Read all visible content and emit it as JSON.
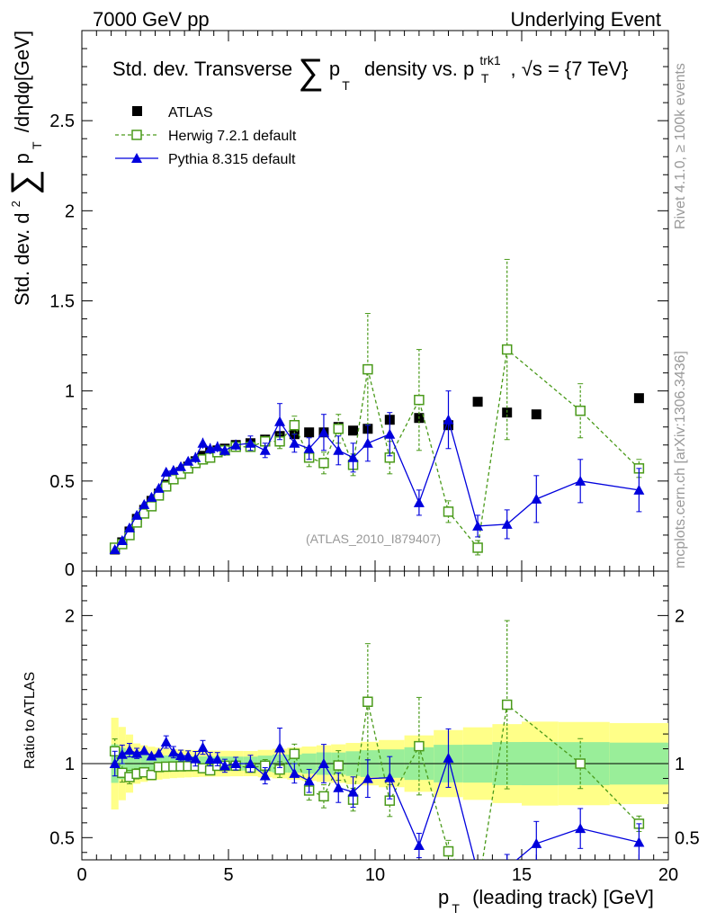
{
  "header": {
    "left": "7000 GeV pp",
    "right": "Underlying Event"
  },
  "side_labels": {
    "rivet": "Rivet 4.1.0, ≥ 100k events",
    "mcplots": "mcplots.cern.ch [arXiv:1306.3436]"
  },
  "chart_data": {
    "type": "scatter",
    "title_parts": {
      "pre": "Std. dev. Transverse",
      "sum": "∑",
      "p": "p",
      "T": "T",
      "mid": "density vs. p",
      "sup": "trk1",
      "sub": "T",
      "post": ", √s = {7 TeV}"
    },
    "ylabel_parts": {
      "pre": "Std. dev. d",
      "two": "2",
      "sum": "∑",
      "p": "p",
      "T": "T",
      "post": "/dηdφ[GeV]"
    },
    "xlabel_parts": {
      "p": "p",
      "T": "T",
      "post": "(leading track) [GeV]"
    },
    "ratio_ylabel": "Ratio to ATLAS",
    "watermark": "(ATLAS_2010_I879407)",
    "xlim": [
      0,
      20
    ],
    "ylim": [
      0,
      3.0
    ],
    "ratio_ylim": [
      0.35,
      2.3
    ],
    "x_ticks": [
      "0",
      "5",
      "10",
      "15",
      "20"
    ],
    "y_ticks": [
      "0.5",
      "1",
      "1.5",
      "2",
      "2.5"
    ],
    "y_zero_label": "0",
    "ratio_ticks": [
      "0.5",
      "1",
      "2"
    ],
    "legend": [
      {
        "name": "ATLAS",
        "marker": "square-filled",
        "color": "#000000"
      },
      {
        "name": "Herwig 7.2.1 default",
        "marker": "square-open",
        "color": "#4a9a1a"
      },
      {
        "name": "Pythia 8.315 default",
        "marker": "triangle",
        "color": "#0000dd"
      }
    ],
    "atlas": {
      "x": [
        1.125,
        1.375,
        1.625,
        1.875,
        2.125,
        2.375,
        2.625,
        2.875,
        3.125,
        3.375,
        3.625,
        3.875,
        4.125,
        4.375,
        4.625,
        4.875,
        5.25,
        5.75,
        6.25,
        6.75,
        7.25,
        7.75,
        8.25,
        8.75,
        9.25,
        9.75,
        10.5,
        11.5,
        12.5,
        13.5,
        14.5,
        15.5,
        17.0,
        19.0
      ],
      "y": [
        0.12,
        0.16,
        0.22,
        0.29,
        0.34,
        0.39,
        0.43,
        0.48,
        0.52,
        0.55,
        0.58,
        0.61,
        0.64,
        0.66,
        0.67,
        0.68,
        0.7,
        0.71,
        0.73,
        0.75,
        0.76,
        0.77,
        0.77,
        0.8,
        0.78,
        0.79,
        0.84,
        0.85,
        0.81,
        0.94,
        0.88,
        0.87,
        0.89,
        0.96
      ],
      "band_inner": [
        0.03,
        0.03,
        0.03,
        0.03,
        0.03,
        0.03,
        0.03,
        0.03,
        0.03,
        0.03,
        0.03,
        0.03,
        0.03,
        0.03,
        0.03,
        0.03,
        0.03,
        0.03,
        0.035,
        0.04,
        0.04,
        0.045,
        0.05,
        0.05,
        0.055,
        0.06,
        0.065,
        0.075,
        0.085,
        0.09,
        0.1,
        0.1,
        0.1,
        0.1
      ],
      "band_outer": [
        0.06,
        0.06,
        0.06,
        0.05,
        0.05,
        0.05,
        0.05,
        0.05,
        0.05,
        0.05,
        0.05,
        0.05,
        0.05,
        0.05,
        0.05,
        0.05,
        0.05,
        0.05,
        0.055,
        0.06,
        0.065,
        0.07,
        0.075,
        0.08,
        0.085,
        0.09,
        0.1,
        0.12,
        0.14,
        0.16,
        0.17,
        0.18,
        0.18,
        0.18
      ]
    },
    "herwig": {
      "x": [
        1.125,
        1.375,
        1.625,
        1.875,
        2.125,
        2.375,
        2.625,
        2.875,
        3.125,
        3.375,
        3.625,
        3.875,
        4.125,
        4.375,
        4.625,
        4.875,
        5.25,
        5.75,
        6.25,
        6.75,
        7.25,
        7.75,
        8.25,
        8.75,
        9.25,
        9.75,
        10.5,
        11.5,
        12.5,
        13.5,
        14.5,
        17.0,
        19.0
      ],
      "y": [
        0.13,
        0.15,
        0.2,
        0.27,
        0.32,
        0.36,
        0.42,
        0.47,
        0.51,
        0.54,
        0.57,
        0.6,
        0.62,
        0.63,
        0.66,
        0.67,
        0.69,
        0.69,
        0.72,
        0.72,
        0.81,
        0.63,
        0.6,
        0.79,
        0.59,
        1.12,
        0.63,
        0.95,
        0.33,
        0.13,
        1.23,
        0.89,
        0.57
      ],
      "err": [
        0.01,
        0.01,
        0.01,
        0.01,
        0.01,
        0.01,
        0.01,
        0.01,
        0.01,
        0.01,
        0.01,
        0.01,
        0.01,
        0.015,
        0.015,
        0.015,
        0.015,
        0.02,
        0.03,
        0.04,
        0.05,
        0.05,
        0.06,
        0.08,
        0.06,
        0.31,
        0.09,
        0.28,
        0.06,
        0.04,
        0.5,
        0.15,
        0.05
      ]
    },
    "pythia": {
      "x": [
        1.125,
        1.375,
        1.625,
        1.875,
        2.125,
        2.375,
        2.625,
        2.875,
        3.125,
        3.375,
        3.625,
        3.875,
        4.125,
        4.375,
        4.625,
        4.875,
        5.25,
        5.75,
        6.25,
        6.75,
        7.25,
        7.75,
        8.25,
        8.75,
        9.25,
        9.75,
        10.5,
        11.5,
        12.5,
        13.5,
        14.5,
        15.5,
        17.0,
        19.0
      ],
      "y": [
        0.12,
        0.17,
        0.24,
        0.31,
        0.37,
        0.41,
        0.46,
        0.55,
        0.56,
        0.58,
        0.61,
        0.63,
        0.71,
        0.68,
        0.69,
        0.67,
        0.7,
        0.71,
        0.67,
        0.83,
        0.71,
        0.68,
        0.77,
        0.67,
        0.63,
        0.71,
        0.76,
        0.38,
        0.84,
        0.25,
        0.26,
        0.4,
        0.5,
        0.45
      ],
      "err": [
        0.01,
        0.01,
        0.01,
        0.01,
        0.01,
        0.01,
        0.01,
        0.02,
        0.02,
        0.02,
        0.02,
        0.03,
        0.03,
        0.03,
        0.03,
        0.03,
        0.03,
        0.04,
        0.04,
        0.1,
        0.05,
        0.06,
        0.1,
        0.08,
        0.08,
        0.1,
        0.12,
        0.07,
        0.16,
        0.06,
        0.08,
        0.13,
        0.12,
        0.12
      ]
    }
  }
}
